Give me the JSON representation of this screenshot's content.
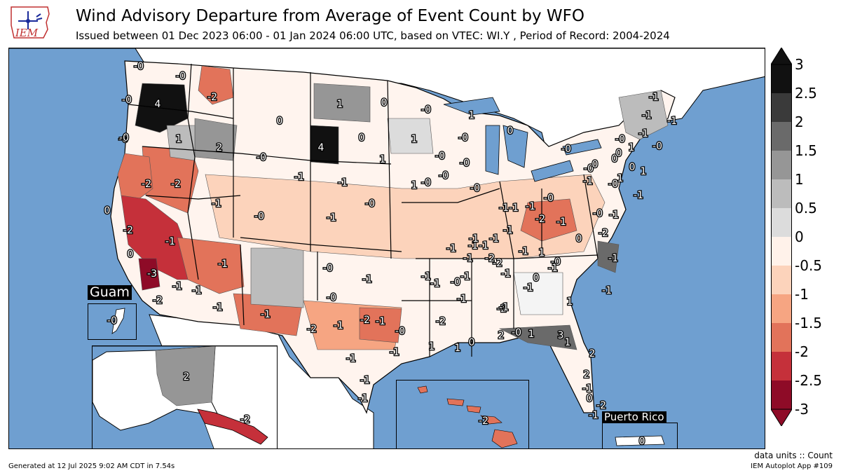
{
  "header": {
    "title": "Wind Advisory Departure from Average of Event Count by WFO",
    "subtitle": "Issued between 01 Dec 2023 06:00 - 01 Jan 2024 06:00 UTC, based on VTEC: WI.Y  , Period of Record: 2004-2024",
    "logo_text": "IEM"
  },
  "legend": {
    "ticks": [
      "3",
      "2.5",
      "2",
      "1.5",
      "1",
      "0.5",
      "0",
      "-0.5",
      "-1",
      "-1.5",
      "-2",
      "-2.5",
      "-3"
    ],
    "colors": [
      "#111111",
      "#3a3a3a",
      "#6a6a6a",
      "#969696",
      "#bcbcbc",
      "#dcdcdc",
      "#f4f4f4",
      "#fff2ea",
      "#fcd3bb",
      "#f6a582",
      "#e2735a",
      "#c5303a",
      "#8e0b27"
    ],
    "units": "data units :: Count"
  },
  "insets": {
    "guam": {
      "title": "Guam",
      "value": "-0"
    },
    "alaska": {
      "values": [
        "2",
        "-2"
      ]
    },
    "hawaii": {
      "value": "-2"
    },
    "puerto_rico": {
      "title": "Puerto Rico",
      "value": "0"
    }
  },
  "map_labels": [
    "-0",
    "-0",
    "-2",
    "-0",
    "4",
    "-0",
    "1",
    "2",
    "1",
    "0",
    "-0",
    "1",
    "-0",
    "0",
    "1",
    "-0",
    "-0",
    "0",
    "-0",
    "4",
    "0",
    "-1",
    "1",
    "1",
    "-0",
    "-0",
    "-0",
    "-1",
    "-2",
    "-2",
    "-2",
    "-1",
    "-1",
    "-0",
    "-0",
    "-1",
    "-0",
    "0",
    "0",
    "-1",
    "-1",
    "-1",
    "-1",
    "-1",
    "-0",
    "-1",
    "-0",
    "-2",
    "-1",
    "-1",
    "-2",
    "-1",
    "-1",
    "-1",
    "-1",
    "-0",
    "-1",
    "-1",
    "-2",
    "-0",
    "-1",
    "-1",
    "-2",
    "-1",
    "-2",
    "-1",
    "-1",
    "-0",
    "0",
    "-0",
    "-0",
    "-0",
    "-1",
    "-1",
    "-1",
    "-1",
    "-1",
    "-1",
    "-1",
    "1",
    "-0",
    "0",
    "-2",
    "-1",
    "-1",
    "-1",
    "-1",
    "-2",
    "-2",
    "-1",
    "-1",
    "-1",
    "-1",
    "-1",
    "-1",
    "-0",
    "-0",
    "0",
    "0",
    "1",
    "0",
    "1",
    "1",
    "-1",
    "-1",
    "-1",
    "-0",
    "-1",
    "-1",
    "0",
    "-0",
    "1",
    "1",
    "2",
    "2",
    "0",
    "-1",
    "-2",
    "-1",
    "1",
    "3",
    "1",
    "1",
    "0",
    "2",
    "-3",
    "-2"
  ],
  "map_label_colors": [
    "#f4f4f4",
    "#fcd3bb",
    "#e2735a",
    "#fff2ea",
    "#111111",
    "#fff2ea",
    "#bcbcbc",
    "#6a6a6a",
    "#969696",
    "#f4f4f4",
    "#fff2ea",
    "#bcbcbc"
  ],
  "footer": {
    "generated": "Generated at 12 Jul 2025 9:02 AM CDT in 7.54s",
    "app": "IEM Autoplot App #109"
  }
}
